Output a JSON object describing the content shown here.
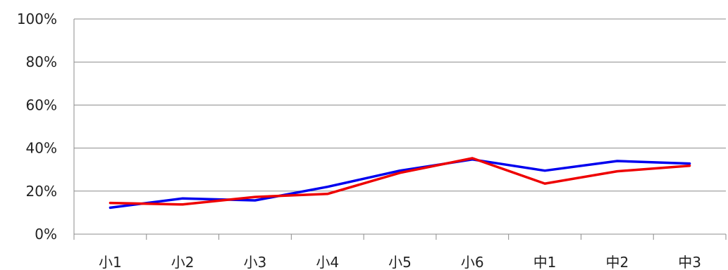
{
  "chart_data": {
    "type": "line",
    "categories": [
      "小1",
      "小2",
      "小3",
      "小4",
      "小5",
      "小6",
      "中1",
      "中2",
      "中3"
    ],
    "series": [
      {
        "color": "#0000ee",
        "values": [
          12.3,
          16.6,
          15.7,
          22.0,
          29.5,
          34.7,
          29.5,
          34.0,
          32.8
        ]
      },
      {
        "color": "#ee0000",
        "values": [
          14.5,
          13.8,
          17.3,
          18.7,
          28.5,
          35.3,
          23.5,
          29.2,
          31.8
        ]
      }
    ],
    "y_ticks": [
      "0%",
      "20%",
      "40%",
      "60%",
      "80%",
      "100%"
    ],
    "ylim": [
      0,
      100
    ],
    "grid": true,
    "legend": "none"
  }
}
